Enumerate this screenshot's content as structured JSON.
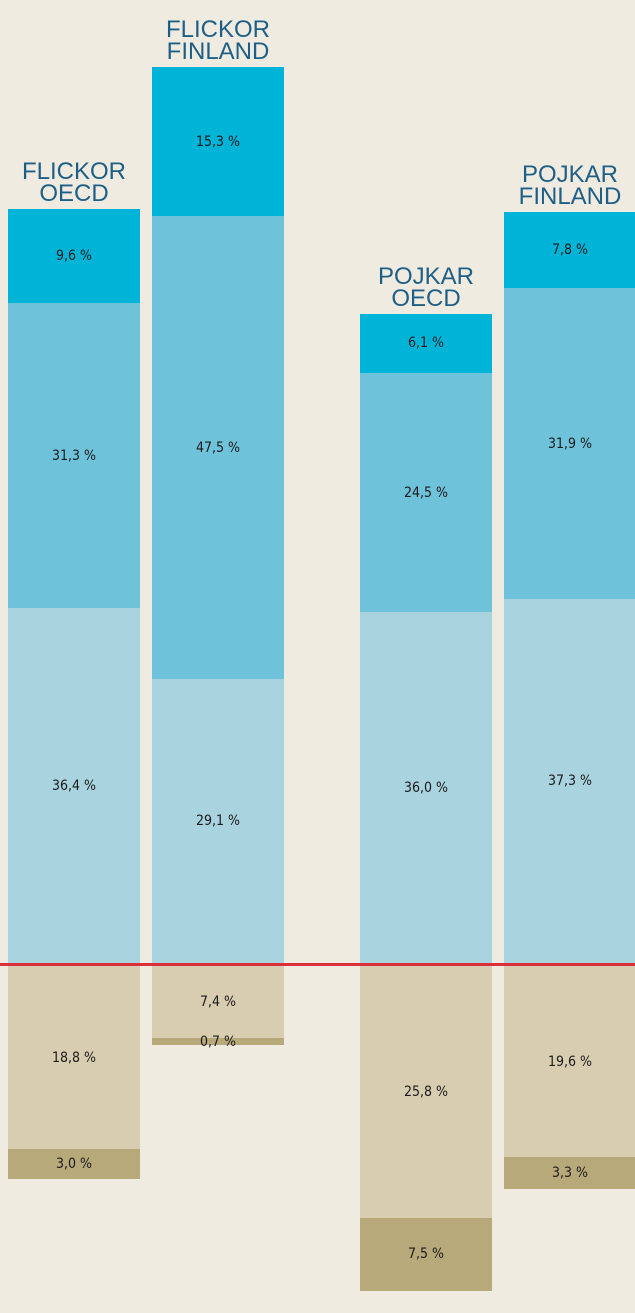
{
  "chart_data": {
    "type": "diverging-stacked-bar",
    "categories": [
      "FLICKOR OECD",
      "FLICKOR FINLAND",
      "POJKAR OECD",
      "POJKAR FINLAND"
    ],
    "series": [
      {
        "color": "#a9d3df",
        "side": "above",
        "values": [
          36.4,
          29.1,
          36.0,
          37.3
        ],
        "value_labels": [
          "36,4 %",
          "29,1 %",
          "36,0 %",
          "37,3 %"
        ]
      },
      {
        "color": "#6ec2da",
        "side": "above",
        "values": [
          31.3,
          47.5,
          24.5,
          31.9
        ],
        "value_labels": [
          "31,3 %",
          "47,5 %",
          "24,5 %",
          "31,9 %"
        ]
      },
      {
        "color": "#00b4d8",
        "side": "above",
        "values": [
          9.6,
          15.3,
          6.1,
          7.8
        ],
        "value_labels": [
          "9,6 %",
          "15,3 %",
          "6,1 %",
          "7,8 %"
        ]
      },
      {
        "color": "#d9cdb1",
        "side": "below",
        "values": [
          18.8,
          7.4,
          25.8,
          19.6
        ],
        "value_labels": [
          "18,8 %",
          "7,4 %",
          "25,8 %",
          "19,6 %"
        ]
      },
      {
        "color": "#b8a97b",
        "side": "below",
        "values": [
          3.0,
          0.7,
          7.5,
          3.3
        ],
        "value_labels": [
          "3,0 %",
          "0,7 %",
          "7,5 %",
          "3,3 %"
        ]
      }
    ]
  }
}
